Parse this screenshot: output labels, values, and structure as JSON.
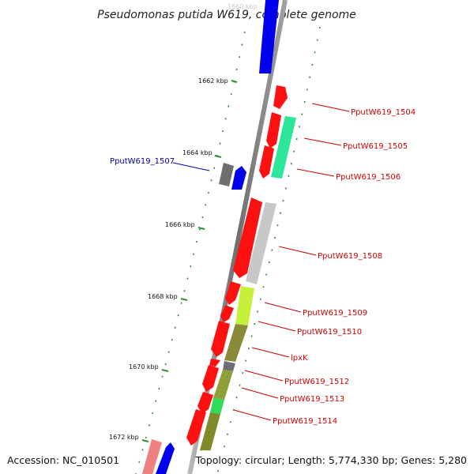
{
  "title": "Pseudomonas putida W619, complete genome",
  "footer": {
    "accession": "Accession: NC_010501",
    "summary": "Topology: circular; Length: 5,774,330 bp; Genes: 5,280"
  },
  "scale": {
    "top_label": "1660 kbp",
    "kbp_labels": [
      "1662 kbp",
      "1664 kbp",
      "1666 kbp",
      "1668 kbp",
      "1670 kbp",
      "1672 kbp"
    ]
  },
  "colors": {
    "forward_strand": "#ff0000",
    "reverse_strand": "#0000ff",
    "label_forward": "#cc0000",
    "label_reverse": "#0000aa",
    "tick": "#2e8b2e",
    "backbone": "#8c8c8c"
  },
  "gene_labels": [
    {
      "id": "1504",
      "text": "PputW619_1504",
      "color": "#cc0000"
    },
    {
      "id": "1505",
      "text": "PputW619_1505",
      "color": "#cc0000"
    },
    {
      "id": "1506",
      "text": "PputW619_1506",
      "color": "#cc0000"
    },
    {
      "id": "1507",
      "text": "PputW619_1507",
      "color": "#0000aa"
    },
    {
      "id": "1508",
      "text": "PputW619_1508",
      "color": "#cc0000"
    },
    {
      "id": "1509",
      "text": "PputW619_1509",
      "color": "#cc0000"
    },
    {
      "id": "1510",
      "text": "PputW619_1510",
      "color": "#cc0000"
    },
    {
      "id": "lpxK",
      "text": "lpxK",
      "color": "#cc0000"
    },
    {
      "id": "1512",
      "text": "PputW619_1512",
      "color": "#cc0000"
    },
    {
      "id": "1513",
      "text": "PputW619_1513",
      "color": "#cc0000"
    },
    {
      "id": "1514",
      "text": "PputW619_1514",
      "color": "#cc0000"
    }
  ]
}
